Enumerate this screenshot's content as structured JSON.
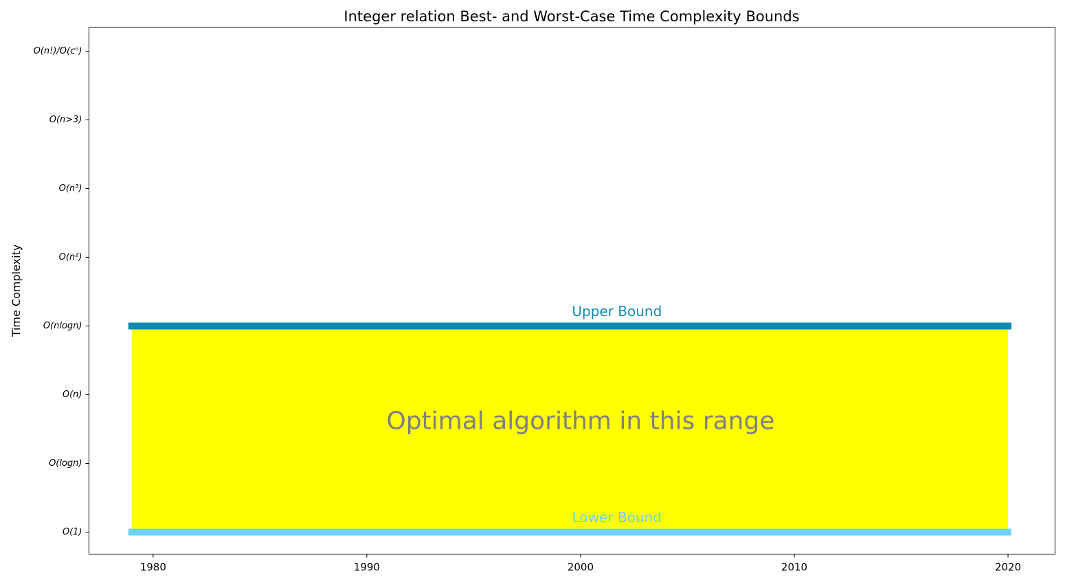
{
  "chart_data": {
    "type": "area",
    "title": "Integer relation Best- and Worst-Case Time Complexity Bounds",
    "xlabel": "",
    "ylabel": "Time Complexity",
    "xlim": [
      1977,
      2022.2
    ],
    "ylim": [
      -0.32,
      7.35
    ],
    "x_ticks": [
      1980,
      1990,
      2000,
      2010,
      2020
    ],
    "y_ticks": [
      {
        "value": 0,
        "label": "O(1)"
      },
      {
        "value": 1,
        "label": "O(logn)"
      },
      {
        "value": 2,
        "label": "O(n)"
      },
      {
        "value": 3,
        "label": "O(nlogn)"
      },
      {
        "value": 4,
        "label": "O(n²)"
      },
      {
        "value": 5,
        "label": "O(n³)"
      },
      {
        "value": 6,
        "label": "O(n>3)"
      },
      {
        "value": 7,
        "label": "O(n!)/O(cⁿ)"
      }
    ],
    "series": [
      {
        "name": "Upper Bound",
        "x": [
          1979,
          2020
        ],
        "values": [
          3,
          3
        ],
        "color": "#118ab2"
      },
      {
        "name": "Lower Bound",
        "x": [
          1979,
          2020
        ],
        "values": [
          0,
          0
        ],
        "color": "#73d2f3"
      }
    ],
    "fill_region": {
      "x": [
        1979,
        2020
      ],
      "lower": 0,
      "upper": 3,
      "color": "#ffff00"
    },
    "annotations": [
      {
        "text": "Upper Bound",
        "x": 2001.7,
        "y": 3.2,
        "color": "#118ab2"
      },
      {
        "text": "Lower Bound",
        "x": 2001.7,
        "y": 0.2,
        "color": "#73d2f3"
      },
      {
        "text": "Optimal algorithm in this range",
        "x": 2000,
        "y": 1.6,
        "color": "#808080"
      }
    ]
  }
}
